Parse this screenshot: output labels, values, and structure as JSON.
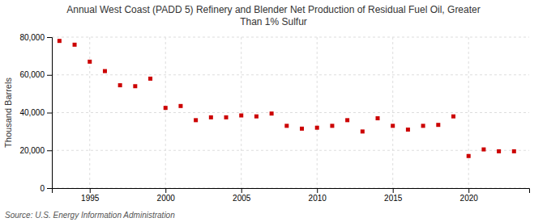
{
  "chart_data": {
    "type": "scatter",
    "title": "Annual West Coast (PADD 5) Refinery and Blender Net Production of Residual Fuel Oil, Greater\nThan 1% Sulfur",
    "ylabel": "Thousand Barrels",
    "source": "Source: U.S. Energy Information Administration",
    "x": [
      1993,
      1994,
      1995,
      1996,
      1997,
      1998,
      1999,
      2000,
      2001,
      2002,
      2003,
      2004,
      2005,
      2006,
      2007,
      2008,
      2009,
      2010,
      2011,
      2012,
      2013,
      2014,
      2015,
      2016,
      2017,
      2018,
      2019,
      2020,
      2021,
      2022,
      2023
    ],
    "values": [
      78000,
      76000,
      67000,
      62000,
      54500,
      54000,
      58000,
      42500,
      43500,
      36000,
      37500,
      37500,
      38500,
      38000,
      39500,
      33000,
      31500,
      32000,
      33000,
      36000,
      30000,
      37000,
      33000,
      31000,
      33000,
      33500,
      38000,
      17000,
      20500,
      19500,
      19500
    ],
    "color": "#cc0000",
    "marker": "square",
    "xlim": [
      1992.5,
      2024
    ],
    "xticks": [
      1995,
      2000,
      2005,
      2010,
      2015,
      2020
    ],
    "ylim": [
      0,
      80000
    ],
    "yticks": [
      0,
      {
        "value": 20000,
        "label": "20,000"
      },
      {
        "value": 40000,
        "label": "40,000"
      },
      {
        "value": 60000,
        "label": "60,000"
      },
      {
        "value": 80000,
        "label": "80,000"
      }
    ],
    "grid": true
  }
}
